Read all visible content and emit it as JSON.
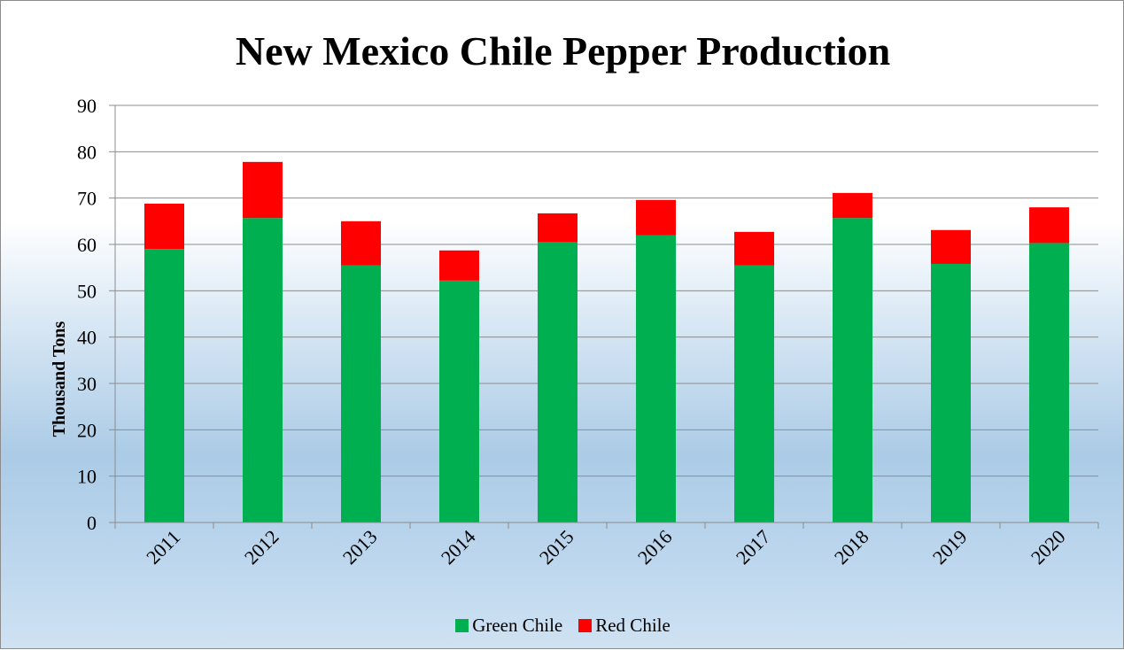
{
  "chart_data": {
    "type": "bar",
    "stacked": true,
    "title": "New Mexico Chile Pepper Production",
    "xlabel": "",
    "ylabel": "Thousand  Tons",
    "ylim": [
      0,
      90
    ],
    "yticks": [
      "0",
      "10",
      "20",
      "30",
      "40",
      "50",
      "60",
      "70",
      "80",
      "90"
    ],
    "categories": [
      "2011",
      "2012",
      "2013",
      "2014",
      "2015",
      "2016",
      "2017",
      "2018",
      "2019",
      "2020"
    ],
    "series": [
      {
        "name": "Green Chile",
        "color": "#00b050",
        "values": [
          59,
          65.7,
          55.5,
          52.2,
          60.5,
          62,
          55.5,
          65.7,
          55.8,
          60.3
        ]
      },
      {
        "name": "Red Chile",
        "color": "#ff0000",
        "values": [
          9.8,
          12.1,
          9.5,
          6.5,
          6.2,
          7.6,
          7.2,
          5.4,
          7.3,
          7.7
        ]
      }
    ],
    "grid": true,
    "legend_position": "bottom"
  }
}
